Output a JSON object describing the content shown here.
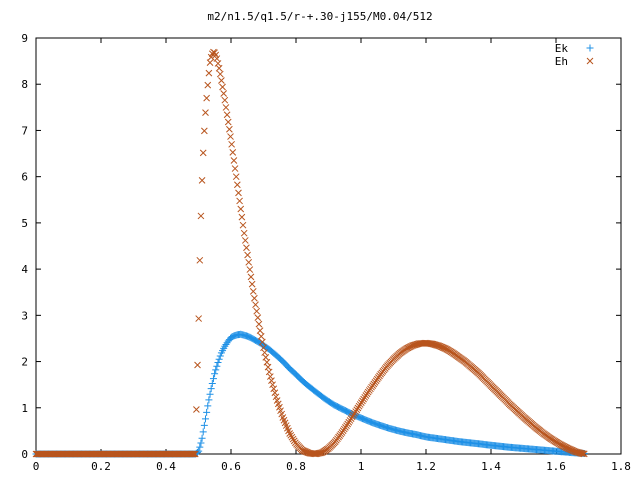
{
  "chart_data": {
    "type": "scatter",
    "title": "m2/n1.5/q1.5/r-+.30-j155/M0.04/512",
    "xlabel": "",
    "ylabel": "",
    "xlim": [
      0,
      1.8
    ],
    "ylim": [
      0,
      9
    ],
    "xticks": [
      "0",
      "0.2",
      "0.4",
      "0.6",
      "0.8",
      "1",
      "1.2",
      "1.4",
      "1.6",
      "1.8"
    ],
    "yticks": [
      "0",
      "1",
      "2",
      "3",
      "4",
      "5",
      "6",
      "7",
      "8",
      "9"
    ],
    "grid": false,
    "legend": "top-right",
    "series": [
      {
        "name": "Ek",
        "marker": "+",
        "color": "#1e90e6",
        "x": [
          0.0,
          0.05,
          0.1,
          0.15,
          0.2,
          0.25,
          0.3,
          0.35,
          0.4,
          0.45,
          0.49,
          0.5,
          0.51,
          0.52,
          0.53,
          0.54,
          0.55,
          0.56,
          0.57,
          0.58,
          0.59,
          0.6,
          0.61,
          0.62,
          0.63,
          0.64,
          0.65,
          0.66,
          0.67,
          0.68,
          0.69,
          0.7,
          0.72,
          0.74,
          0.76,
          0.78,
          0.8,
          0.82,
          0.84,
          0.86,
          0.88,
          0.9,
          0.92,
          0.94,
          0.96,
          0.98,
          1.0,
          1.02,
          1.05,
          1.08,
          1.11,
          1.14,
          1.17,
          1.2,
          1.25,
          1.3,
          1.35,
          1.4,
          1.45,
          1.5,
          1.55,
          1.6,
          1.65,
          1.69
        ],
        "y": [
          0,
          0,
          0,
          0,
          0,
          0,
          0,
          0,
          0,
          0,
          0,
          0.05,
          0.3,
          0.7,
          1.1,
          1.45,
          1.75,
          1.98,
          2.18,
          2.32,
          2.43,
          2.52,
          2.56,
          2.58,
          2.59,
          2.57,
          2.55,
          2.52,
          2.48,
          2.44,
          2.4,
          2.35,
          2.25,
          2.13,
          2.0,
          1.85,
          1.72,
          1.58,
          1.46,
          1.35,
          1.24,
          1.14,
          1.05,
          0.98,
          0.91,
          0.84,
          0.78,
          0.72,
          0.64,
          0.57,
          0.51,
          0.46,
          0.42,
          0.37,
          0.32,
          0.27,
          0.23,
          0.19,
          0.15,
          0.12,
          0.09,
          0.06,
          0.03,
          0.01
        ]
      },
      {
        "name": "Eh",
        "marker": "x",
        "color": "#b8551e",
        "x": [
          0.0,
          0.05,
          0.1,
          0.15,
          0.2,
          0.25,
          0.3,
          0.35,
          0.4,
          0.45,
          0.49,
          0.5,
          0.505,
          0.51,
          0.515,
          0.52,
          0.525,
          0.53,
          0.535,
          0.54,
          0.545,
          0.55,
          0.555,
          0.56,
          0.565,
          0.57,
          0.58,
          0.59,
          0.6,
          0.61,
          0.62,
          0.63,
          0.64,
          0.65,
          0.66,
          0.67,
          0.68,
          0.69,
          0.7,
          0.72,
          0.74,
          0.76,
          0.78,
          0.8,
          0.82,
          0.84,
          0.86,
          0.88,
          0.9,
          0.92,
          0.94,
          0.96,
          0.98,
          1.0,
          1.02,
          1.04,
          1.06,
          1.08,
          1.1,
          1.12,
          1.14,
          1.16,
          1.18,
          1.2,
          1.22,
          1.24,
          1.26,
          1.28,
          1.3,
          1.32,
          1.34,
          1.36,
          1.38,
          1.4,
          1.42,
          1.44,
          1.46,
          1.48,
          1.5,
          1.52,
          1.54,
          1.56,
          1.58,
          1.6,
          1.62,
          1.64,
          1.66,
          1.68,
          1.69
        ],
        "y": [
          0,
          0,
          0,
          0,
          0,
          0,
          0,
          0,
          0,
          0,
          0,
          2.75,
          4.55,
          5.75,
          6.6,
          7.25,
          7.7,
          8.1,
          8.45,
          8.62,
          8.7,
          8.68,
          8.6,
          8.45,
          8.3,
          8.1,
          7.7,
          7.25,
          6.8,
          6.3,
          5.8,
          5.3,
          4.8,
          4.35,
          3.9,
          3.45,
          3.05,
          2.65,
          2.3,
          1.7,
          1.2,
          0.78,
          0.45,
          0.22,
          0.08,
          0.02,
          0.0,
          0.03,
          0.12,
          0.26,
          0.45,
          0.66,
          0.88,
          1.1,
          1.32,
          1.52,
          1.72,
          1.9,
          2.05,
          2.18,
          2.28,
          2.35,
          2.39,
          2.4,
          2.38,
          2.34,
          2.28,
          2.2,
          2.1,
          2.0,
          1.88,
          1.76,
          1.62,
          1.48,
          1.34,
          1.2,
          1.06,
          0.93,
          0.8,
          0.68,
          0.56,
          0.45,
          0.35,
          0.26,
          0.18,
          0.11,
          0.05,
          0.01,
          0.0
        ]
      }
    ]
  }
}
